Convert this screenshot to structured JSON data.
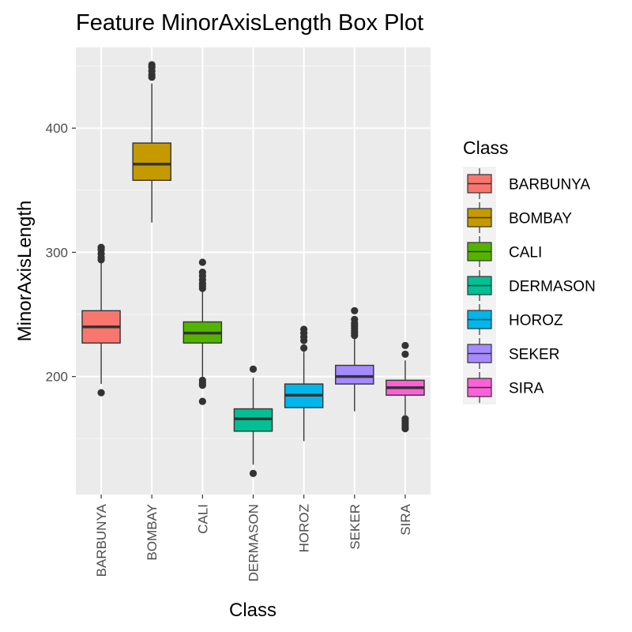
{
  "chart_data": {
    "type": "box",
    "title": "Feature MinorAxisLength Box Plot",
    "xlabel": "Class",
    "ylabel": "MinorAxisLength",
    "ylim": [
      105,
      465
    ],
    "yticks": [
      200,
      300,
      400
    ],
    "grid": true,
    "legend": {
      "title": "Class",
      "position": "right"
    },
    "categories": [
      "BARBUNYA",
      "BOMBAY",
      "CALI",
      "DERMASON",
      "HOROZ",
      "SEKER",
      "SIRA"
    ],
    "colors": [
      "#F8766D",
      "#C49A00",
      "#53B400",
      "#00C094",
      "#00B6EB",
      "#A58AFF",
      "#FB61D7"
    ],
    "boxes": [
      {
        "name": "BARBUNYA",
        "min": 194,
        "q1": 227,
        "median": 240,
        "q3": 253,
        "max": 292,
        "outliers": [
          187,
          294,
          296,
          299,
          302,
          304
        ]
      },
      {
        "name": "BOMBAY",
        "min": 324,
        "q1": 358,
        "median": 371,
        "q3": 388,
        "max": 436,
        "outliers": [
          441,
          443,
          446,
          449,
          451
        ]
      },
      {
        "name": "CALI",
        "min": 200,
        "q1": 227,
        "median": 235,
        "q3": 244,
        "max": 269,
        "outliers": [
          180,
          193,
          195,
          197,
          271,
          273,
          275,
          278,
          281,
          284,
          292
        ]
      },
      {
        "name": "DERMASON",
        "min": 129,
        "q1": 156,
        "median": 166,
        "q3": 174,
        "max": 199,
        "outliers": [
          122,
          206
        ]
      },
      {
        "name": "HOROZ",
        "min": 148,
        "q1": 175,
        "median": 185,
        "q3": 194,
        "max": 220,
        "outliers": [
          223,
          229,
          232,
          235,
          238
        ]
      },
      {
        "name": "SEKER",
        "min": 172,
        "q1": 194,
        "median": 200,
        "q3": 209,
        "max": 231,
        "outliers": [
          233,
          235,
          237,
          239,
          241,
          243,
          246,
          253
        ]
      },
      {
        "name": "SIRA",
        "min": 169,
        "q1": 185,
        "median": 191,
        "q3": 197,
        "max": 213,
        "outliers": [
          158,
          160,
          162,
          164,
          166,
          218,
          225
        ]
      }
    ]
  }
}
